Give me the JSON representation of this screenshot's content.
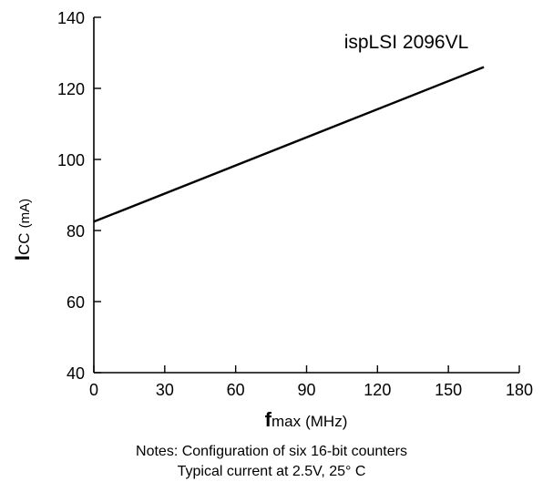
{
  "chart_data": {
    "type": "line",
    "series": [
      {
        "name": "ispLSI 2096VL",
        "x": [
          0,
          165
        ],
        "y": [
          82.5,
          126
        ]
      }
    ],
    "xlabel": {
      "main": "f",
      "sub": "max",
      "unit": "(MHz)"
    },
    "ylabel": {
      "main": "I",
      "sub": "CC",
      "unit": "(mA)"
    },
    "xlim": [
      0,
      180
    ],
    "ylim": [
      40,
      140
    ],
    "xticks": [
      "0",
      "30",
      "60",
      "90",
      "120",
      "150",
      "180"
    ],
    "yticks": [
      "40",
      "60",
      "80",
      "100",
      "120",
      "140"
    ],
    "grid": false,
    "legend": "none"
  },
  "notes": {
    "line1": "Notes: Configuration of six 16-bit counters",
    "line2": "Typical current at 2.5V, 25° C"
  }
}
